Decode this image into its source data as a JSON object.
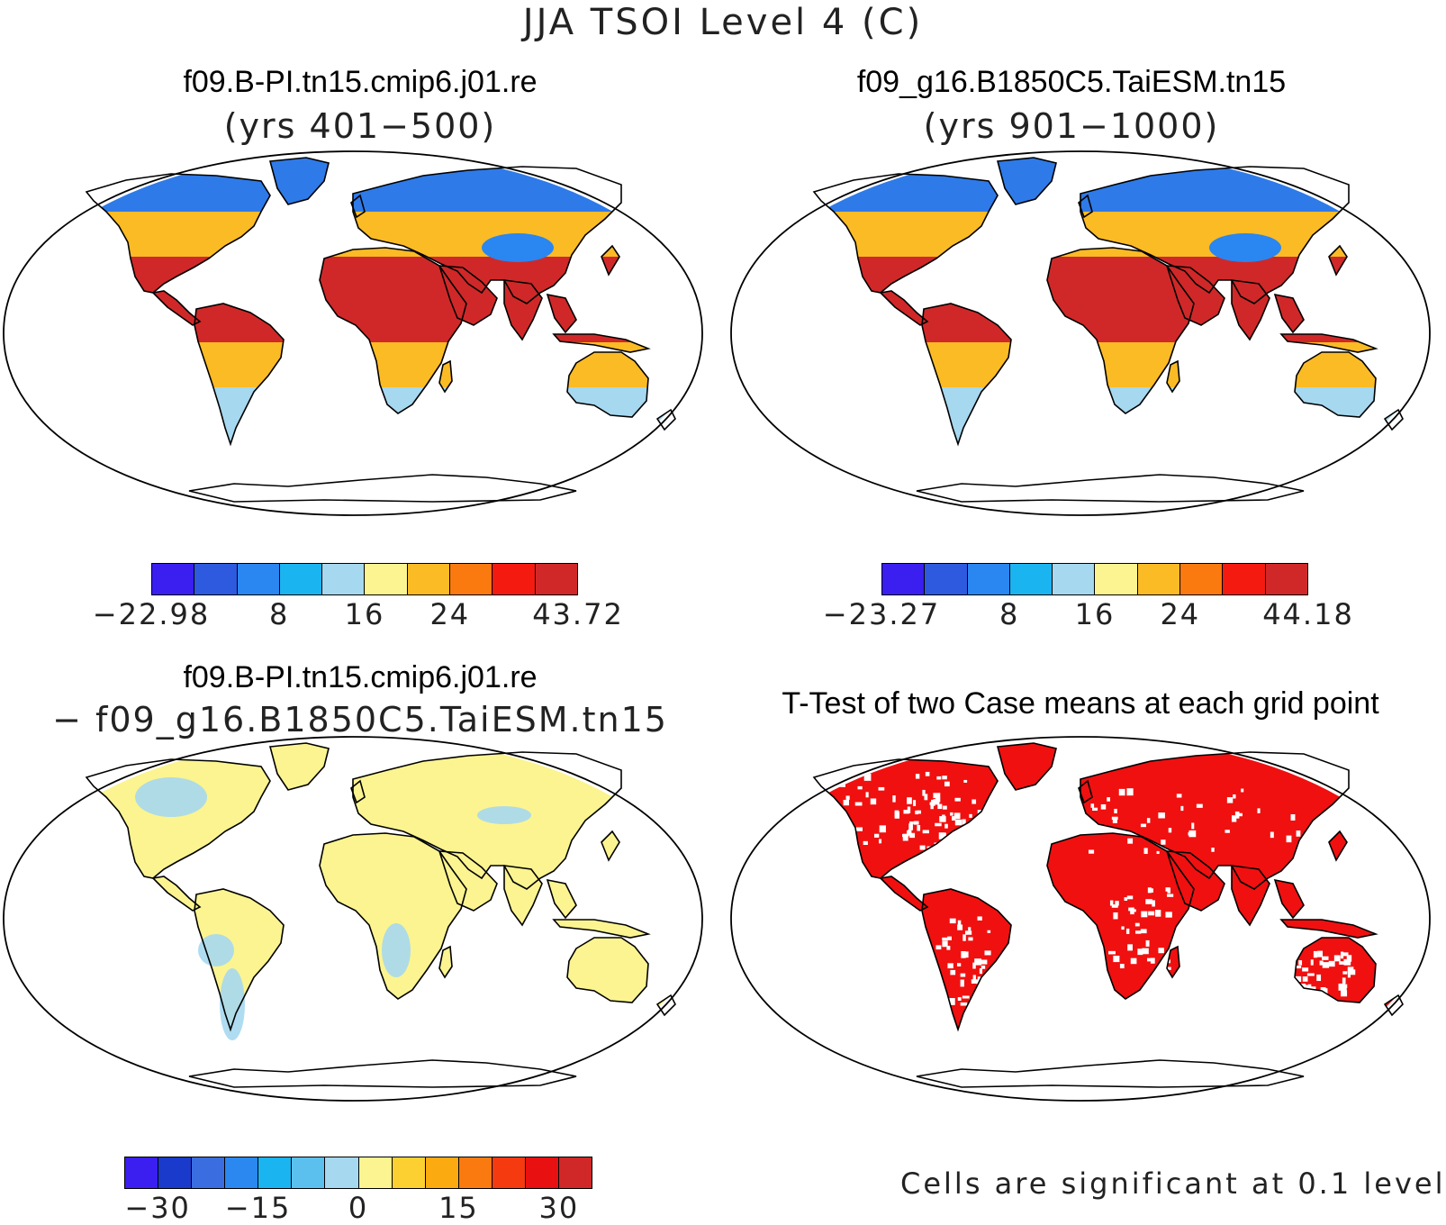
{
  "title": "JJA TSOI Level 4 (C)",
  "panels": {
    "top_left": {
      "title": "f09.B-PI.tn15.cmip6.j01.re",
      "subtitle": "(yrs 401−500)"
    },
    "top_right": {
      "title": "f09_g16.B1850C5.TaiESM.tn15",
      "subtitle": "(yrs 901−1000)"
    },
    "bottom_left": {
      "title": "f09.B-PI.tn15.cmip6.j01.re",
      "subtitle": "− f09_g16.B1850C5.TaiESM.tn15"
    },
    "bottom_right": {
      "title": "T-Test of two Case means at each grid point"
    }
  },
  "colorbars": {
    "case1": {
      "colors": [
        "#3a1ff0",
        "#2e5ae0",
        "#2a86f0",
        "#1ab4f0",
        "#a6d8f0",
        "#fbf490",
        "#fbbb25",
        "#fb7a10",
        "#f51a10",
        "#d02828"
      ],
      "labels": [
        "−22.98",
        "8",
        "16",
        "24",
        "43.72"
      ],
      "label_at": [
        0,
        3,
        5,
        7,
        10
      ]
    },
    "case2": {
      "colors": [
        "#3a1ff0",
        "#2e5ae0",
        "#2a86f0",
        "#1ab4f0",
        "#a6d8f0",
        "#fbf490",
        "#fbbb25",
        "#fb7a10",
        "#f51a10",
        "#d02828"
      ],
      "labels": [
        "−23.27",
        "8",
        "16",
        "24",
        "44.18"
      ],
      "label_at": [
        0,
        3,
        5,
        7,
        10
      ]
    },
    "diff": {
      "colors": [
        "#3a1ff0",
        "#1a3acc",
        "#3a6ee0",
        "#2a88f0",
        "#1ab4f0",
        "#5cc0ee",
        "#a6d8f0",
        "#fbf490",
        "#fbd030",
        "#fbaa10",
        "#fb7a10",
        "#f53a10",
        "#e81010",
        "#d02828"
      ],
      "labels": [
        "−30",
        "−15",
        "0",
        "15",
        "30"
      ],
      "label_at": [
        1,
        4,
        7,
        10,
        13
      ]
    }
  },
  "significance_note": "Cells are significant at 0.1 level",
  "map_fill": {
    "case1": {
      "north": "#2e7ae8",
      "temperate": "#fbbb25",
      "hot": "#d02828",
      "south": "#a6d8f0",
      "plateau": "#2a86f0"
    },
    "case2": {
      "north": "#2e7ae8",
      "temperate": "#fbbb25",
      "hot": "#d02828",
      "south": "#a6d8f0",
      "plateau": "#2a86f0"
    },
    "diff": {
      "land": "#fbf490",
      "cool": "#a6d8f0"
    },
    "ttest": {
      "land": "#f01010",
      "gap": "#ffffff"
    }
  }
}
